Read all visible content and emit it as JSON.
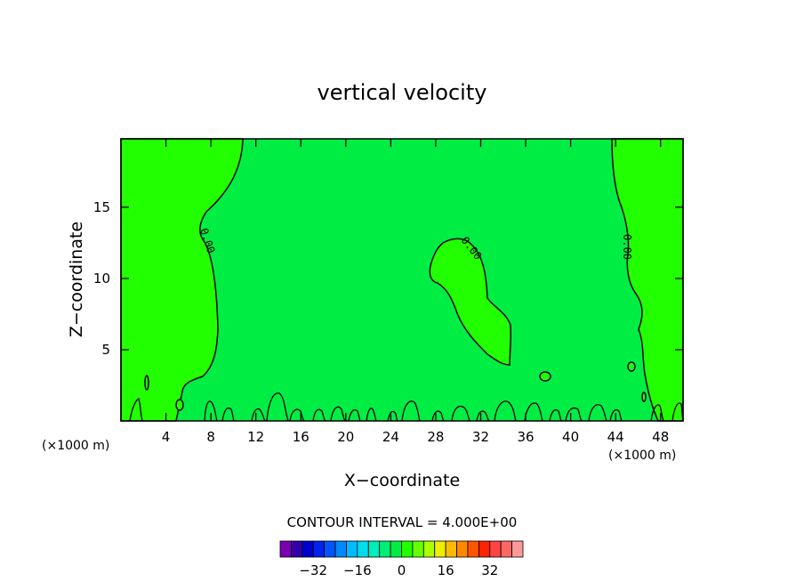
{
  "chart_data": {
    "type": "heatmap",
    "title": "vertical velocity",
    "xlabel": "X−coordinate",
    "ylabel": "Z−coordinate",
    "x_unit_label": "(×1000 m)",
    "y_unit_label": "(×1000 m)",
    "xlim": [
      0,
      50
    ],
    "ylim": [
      0,
      19.8
    ],
    "x_ticks": [
      4,
      8,
      12,
      16,
      20,
      24,
      28,
      32,
      36,
      40,
      44,
      48
    ],
    "y_ticks": [
      5,
      10,
      15
    ],
    "contour_interval_text": "CONTOUR INTERVAL = 4.000E+00",
    "contour_labels": [
      "0.00",
      "0.00",
      "0.00"
    ],
    "colorbar": {
      "colors": [
        "#7a00b0",
        "#3300aa",
        "#0000cc",
        "#0022ee",
        "#0055ff",
        "#0088ff",
        "#00bbff",
        "#00ddee",
        "#00eebb",
        "#00ee77",
        "#00ee44",
        "#22ff00",
        "#66ff00",
        "#aaff00",
        "#eeee00",
        "#ffbb00",
        "#ff8800",
        "#ff5500",
        "#ff2200",
        "#ff4444",
        "#ff6666",
        "#ff9999"
      ],
      "tick_labels": [
        "−32",
        "−16",
        "0",
        "16",
        "32"
      ],
      "tick_values": [
        -32,
        -16,
        0,
        16,
        32
      ]
    },
    "regions": {
      "background_color": "#00ee44",
      "positive_color": "#22ff00"
    }
  }
}
